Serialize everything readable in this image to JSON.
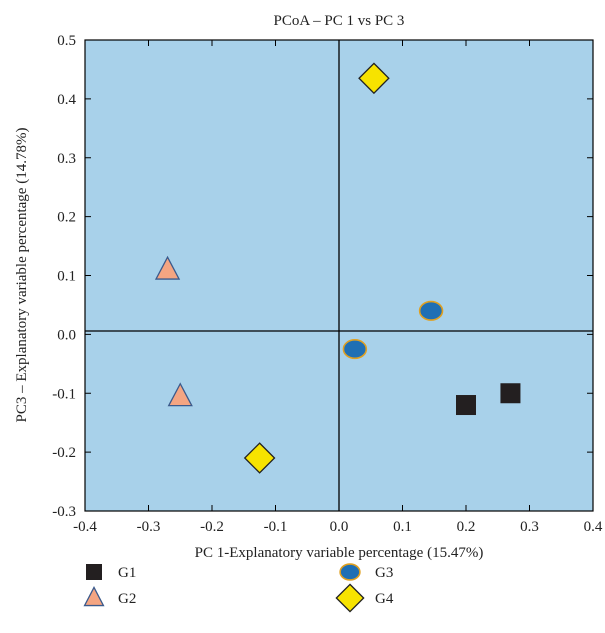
{
  "chart_data": {
    "type": "scatter",
    "title": "PCoA – PC 1 vs PC 3",
    "xlabel": "PC 1-Explanatory variable percentage (15.47%)",
    "ylabel": "PC3 – Explanatory variable percentage (14.78%)",
    "xlim": [
      -0.4,
      0.4
    ],
    "ylim": [
      -0.3,
      0.5
    ],
    "xticks": [
      "-0.4",
      "-0.3",
      "-0.2",
      "-0.1",
      "0.0",
      "0.1",
      "0.2",
      "0.3",
      "0.4"
    ],
    "yticks": [
      "-0.3",
      "-0.2",
      "-0.1",
      "0.0",
      "0.1",
      "0.2",
      "0.3",
      "0.4",
      "0.5"
    ],
    "grid": false,
    "legend_position": "bottom",
    "background_color": "#a8d1ea",
    "series": [
      {
        "name": "G1",
        "marker": "square",
        "color": "#231f20",
        "points": [
          {
            "x": 0.2,
            "y": -0.12
          },
          {
            "x": 0.27,
            "y": -0.1
          }
        ]
      },
      {
        "name": "G2",
        "marker": "triangle",
        "color": "#f4a582",
        "points": [
          {
            "x": -0.27,
            "y": 0.11
          },
          {
            "x": -0.25,
            "y": -0.105
          }
        ]
      },
      {
        "name": "G3",
        "marker": "ellipse",
        "color": "#1f6fb4",
        "points": [
          {
            "x": 0.145,
            "y": 0.04
          },
          {
            "x": 0.025,
            "y": -0.025
          }
        ]
      },
      {
        "name": "G4",
        "marker": "diamond",
        "color": "#f7e300",
        "points": [
          {
            "x": 0.055,
            "y": 0.435
          },
          {
            "x": -0.125,
            "y": -0.21
          }
        ]
      }
    ]
  }
}
